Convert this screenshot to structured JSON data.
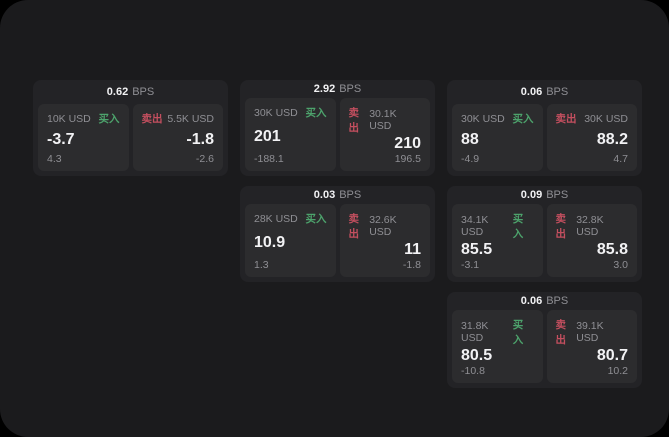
{
  "labels": {
    "buy": "买入",
    "sell": "卖出",
    "bps_suffix": "BPS"
  },
  "colors": {
    "container_bg": "#1b1b1d",
    "card_bg": "#232326",
    "panel_bg": "#2c2c2e",
    "text_primary": "#f2f2f4",
    "text_secondary": "#8f8f94",
    "buy_green": "#4da36c",
    "sell_red": "#c44f5f"
  },
  "cards": [
    {
      "bps": "0.62",
      "row": 1,
      "col": 1,
      "buy": {
        "amount": "10K USD",
        "value": "-3.7",
        "delta": "4.3"
      },
      "sell": {
        "amount": "5.5K USD",
        "value": "-1.8",
        "delta": "-2.6"
      }
    },
    {
      "bps": "2.92",
      "row": 1,
      "col": 2,
      "buy": {
        "amount": "30K USD",
        "value": "201",
        "delta": "-188.1"
      },
      "sell": {
        "amount": "30.1K USD",
        "value": "210",
        "delta": "196.5"
      }
    },
    {
      "bps": "0.06",
      "row": 1,
      "col": 3,
      "buy": {
        "amount": "30K USD",
        "value": "88",
        "delta": "-4.9"
      },
      "sell": {
        "amount": "30K USD",
        "value": "88.2",
        "delta": "4.7"
      }
    },
    {
      "bps": "0.03",
      "row": 2,
      "col": 2,
      "buy": {
        "amount": "28K USD",
        "value": "10.9",
        "delta": "1.3"
      },
      "sell": {
        "amount": "32.6K USD",
        "value": "11",
        "delta": "-1.8"
      }
    },
    {
      "bps": "0.09",
      "row": 2,
      "col": 3,
      "buy": {
        "amount": "34.1K USD",
        "value": "85.5",
        "delta": "-3.1"
      },
      "sell": {
        "amount": "32.8K USD",
        "value": "85.8",
        "delta": "3.0"
      }
    },
    {
      "bps": "0.06",
      "row": 3,
      "col": 3,
      "buy": {
        "amount": "31.8K USD",
        "value": "80.5",
        "delta": "-10.8"
      },
      "sell": {
        "amount": "39.1K USD",
        "value": "80.7",
        "delta": "10.2"
      }
    }
  ]
}
